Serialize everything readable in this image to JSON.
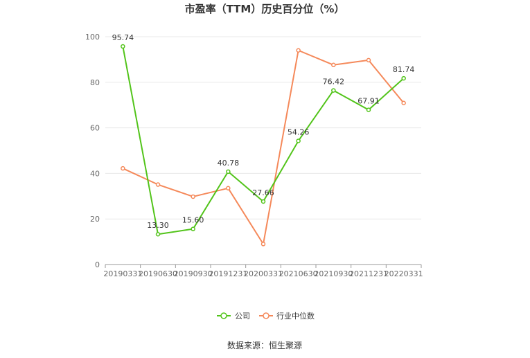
{
  "chart_data": {
    "type": "line",
    "title": "市盈率（TTM）历史百分位（%）",
    "xlabel": "",
    "ylabel": "",
    "categories": [
      "20190331",
      "20190630",
      "20190930",
      "20191231",
      "20200331",
      "20210630",
      "20210930",
      "20211231",
      "20220331"
    ],
    "ylim": [
      0,
      100
    ],
    "yticks": [
      0,
      20,
      40,
      60,
      80,
      100
    ],
    "grid": true,
    "legend_position": "bottom",
    "series": [
      {
        "name": "公司",
        "color": "#52c41a",
        "values": [
          95.74,
          13.3,
          15.6,
          40.78,
          27.66,
          54.26,
          76.42,
          67.91,
          81.74
        ],
        "labels": [
          "95.74",
          "13.30",
          "15.60",
          "40.78",
          "27.66",
          "54.26",
          "76.42",
          "67.91",
          "81.74"
        ]
      },
      {
        "name": "行业中位数",
        "color": "#f5895a",
        "values": [
          42.2,
          35.1,
          29.8,
          33.5,
          9.0,
          94.0,
          87.6,
          89.7,
          70.9
        ]
      }
    ]
  },
  "source": "数据来源：恒生聚源"
}
